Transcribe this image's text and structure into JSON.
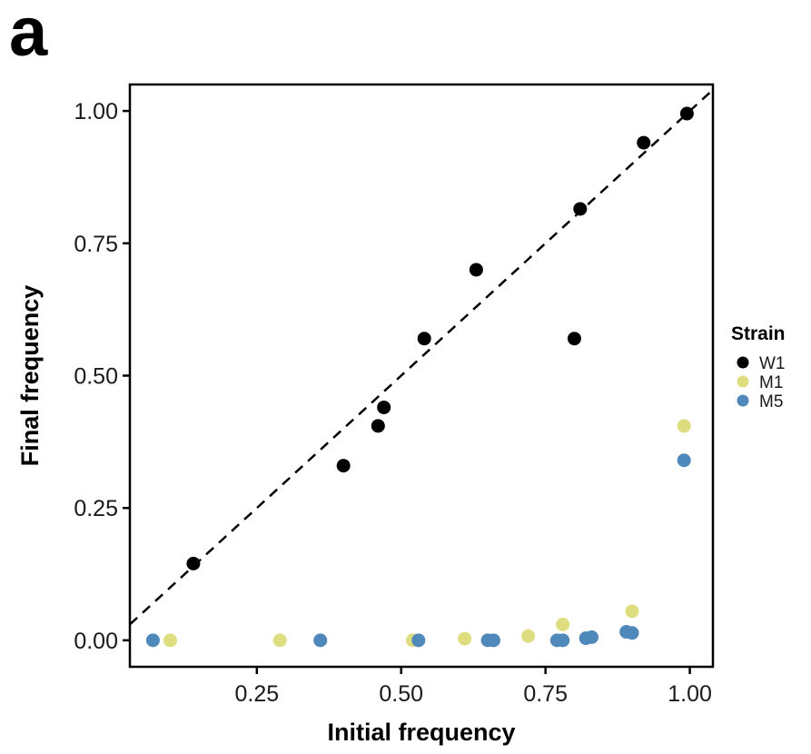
{
  "panel_label": "a",
  "chart_data": {
    "type": "scatter",
    "title": "",
    "xlabel": "Initial frequency",
    "ylabel": "Final frequency",
    "xlim": [
      0.03,
      1.04
    ],
    "ylim": [
      -0.05,
      1.05
    ],
    "xticks": [
      0.25,
      0.5,
      0.75,
      1.0
    ],
    "xtick_labels": [
      "0.25",
      "0.50",
      "0.75",
      "1.00"
    ],
    "yticks": [
      0.0,
      0.25,
      0.5,
      0.75,
      1.0
    ],
    "ytick_labels": [
      "0.00",
      "0.25",
      "0.50",
      "0.75",
      "1.00"
    ],
    "grid": false,
    "reference_line": {
      "style": "dashed",
      "slope": 1,
      "intercept": 0,
      "color": "#000000"
    },
    "legend": {
      "title": "Strain",
      "placement": "right"
    },
    "series": [
      {
        "name": "W1",
        "color": "#000000",
        "points": [
          [
            0.14,
            0.145
          ],
          [
            0.4,
            0.33
          ],
          [
            0.46,
            0.405
          ],
          [
            0.47,
            0.44
          ],
          [
            0.54,
            0.57
          ],
          [
            0.63,
            0.7
          ],
          [
            0.8,
            0.57
          ],
          [
            0.81,
            0.815
          ],
          [
            0.92,
            0.94
          ],
          [
            0.995,
            0.995
          ]
        ]
      },
      {
        "name": "M1",
        "color": "#dede80",
        "points": [
          [
            0.1,
            0.0
          ],
          [
            0.29,
            0.0
          ],
          [
            0.52,
            0.0
          ],
          [
            0.61,
            0.003
          ],
          [
            0.72,
            0.008
          ],
          [
            0.78,
            0.03
          ],
          [
            0.9,
            0.055
          ],
          [
            0.99,
            0.405
          ]
        ]
      },
      {
        "name": "M5",
        "color": "#4f88bb",
        "points": [
          [
            0.07,
            0.0
          ],
          [
            0.36,
            0.0
          ],
          [
            0.53,
            0.0
          ],
          [
            0.65,
            0.0
          ],
          [
            0.66,
            0.0
          ],
          [
            0.77,
            0.0
          ],
          [
            0.78,
            0.0
          ],
          [
            0.82,
            0.004
          ],
          [
            0.83,
            0.006
          ],
          [
            0.89,
            0.016
          ],
          [
            0.9,
            0.014
          ],
          [
            0.99,
            0.34
          ]
        ]
      }
    ]
  }
}
